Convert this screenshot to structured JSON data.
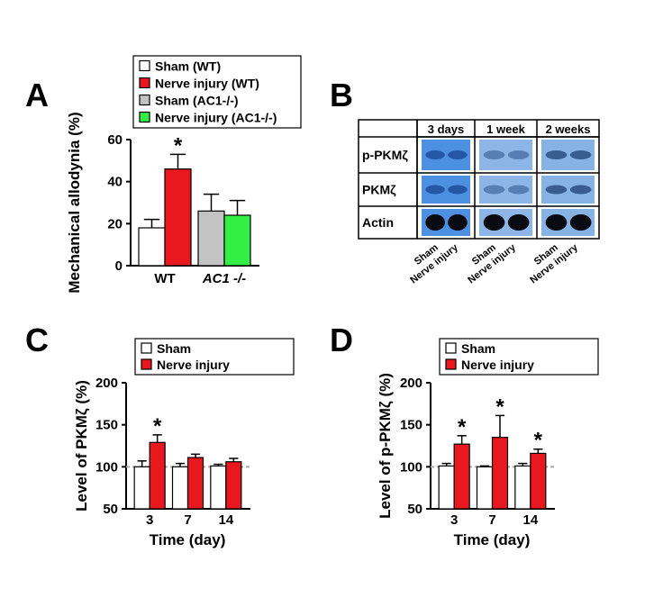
{
  "chart_data": [
    {
      "type": "bar",
      "label": "A",
      "y_label": "Mechanical allodynia (%)",
      "categories": [
        "WT",
        "AC1 -/-"
      ],
      "series": [
        {
          "name": "Sham (WT)",
          "color": "#ffffff",
          "values": [
            18,
            null
          ],
          "errors": [
            4,
            null
          ]
        },
        {
          "name": "Nerve injury (WT)",
          "color": "#e8181e",
          "values": [
            46,
            null
          ],
          "errors": [
            7,
            null
          ]
        },
        {
          "name": "Sham (AC1-/-)",
          "color": "#c3c3c3",
          "values": [
            null,
            26
          ],
          "errors": [
            null,
            8
          ]
        },
        {
          "name": "Nerve injury (AC1-/-)",
          "color": "#33ee44",
          "values": [
            null,
            24
          ],
          "errors": [
            null,
            7
          ]
        }
      ],
      "ylim": [
        0,
        60
      ],
      "yticks": [
        0,
        20,
        40,
        60
      ],
      "annotations": [
        {
          "text": "*",
          "category": "WT",
          "series": "Nerve injury (WT)"
        }
      ]
    },
    {
      "type": "bar",
      "label": "C",
      "y_label": "Level of PKMζ (%)",
      "x_label": "Time (day)",
      "categories": [
        "3",
        "7",
        "14"
      ],
      "series": [
        {
          "name": "Sham",
          "color": "#ffffff",
          "values": [
            100,
            100,
            101
          ],
          "errors": [
            7,
            4,
            2
          ]
        },
        {
          "name": "Nerve injury",
          "color": "#e8181e",
          "values": [
            129,
            111,
            106
          ],
          "errors": [
            9,
            4,
            4
          ]
        }
      ],
      "ylim": [
        50,
        200
      ],
      "yticks": [
        50,
        100,
        150,
        200
      ],
      "reference_line": 100,
      "annotations": [
        {
          "text": "*",
          "category": "3",
          "series": "Nerve injury"
        }
      ]
    },
    {
      "type": "bar",
      "label": "D",
      "y_label": "Level of p-PKMζ (%)",
      "x_label": "Time (day)",
      "categories": [
        "3",
        "7",
        "14"
      ],
      "series": [
        {
          "name": "Sham",
          "color": "#ffffff",
          "values": [
            101,
            100,
            101
          ],
          "errors": [
            3,
            1,
            3
          ]
        },
        {
          "name": "Nerve injury",
          "color": "#e8181e",
          "values": [
            127,
            135,
            116
          ],
          "errors": [
            10,
            26,
            5
          ]
        }
      ],
      "ylim": [
        50,
        200
      ],
      "yticks": [
        50,
        100,
        150,
        200
      ],
      "reference_line": 100,
      "annotations": [
        {
          "text": "*",
          "category": "3",
          "series": "Nerve injury"
        },
        {
          "text": "*",
          "category": "7",
          "series": "Nerve injury"
        },
        {
          "text": "*",
          "category": "14",
          "series": "Nerve injury"
        }
      ]
    }
  ],
  "blot": {
    "label": "B",
    "columns": [
      "3 days",
      "1 week",
      "2 weeks"
    ],
    "rows": [
      "p-PKMζ",
      "PKMζ",
      "Actin"
    ],
    "lanes": [
      "Sham",
      "Nerve injury"
    ]
  }
}
